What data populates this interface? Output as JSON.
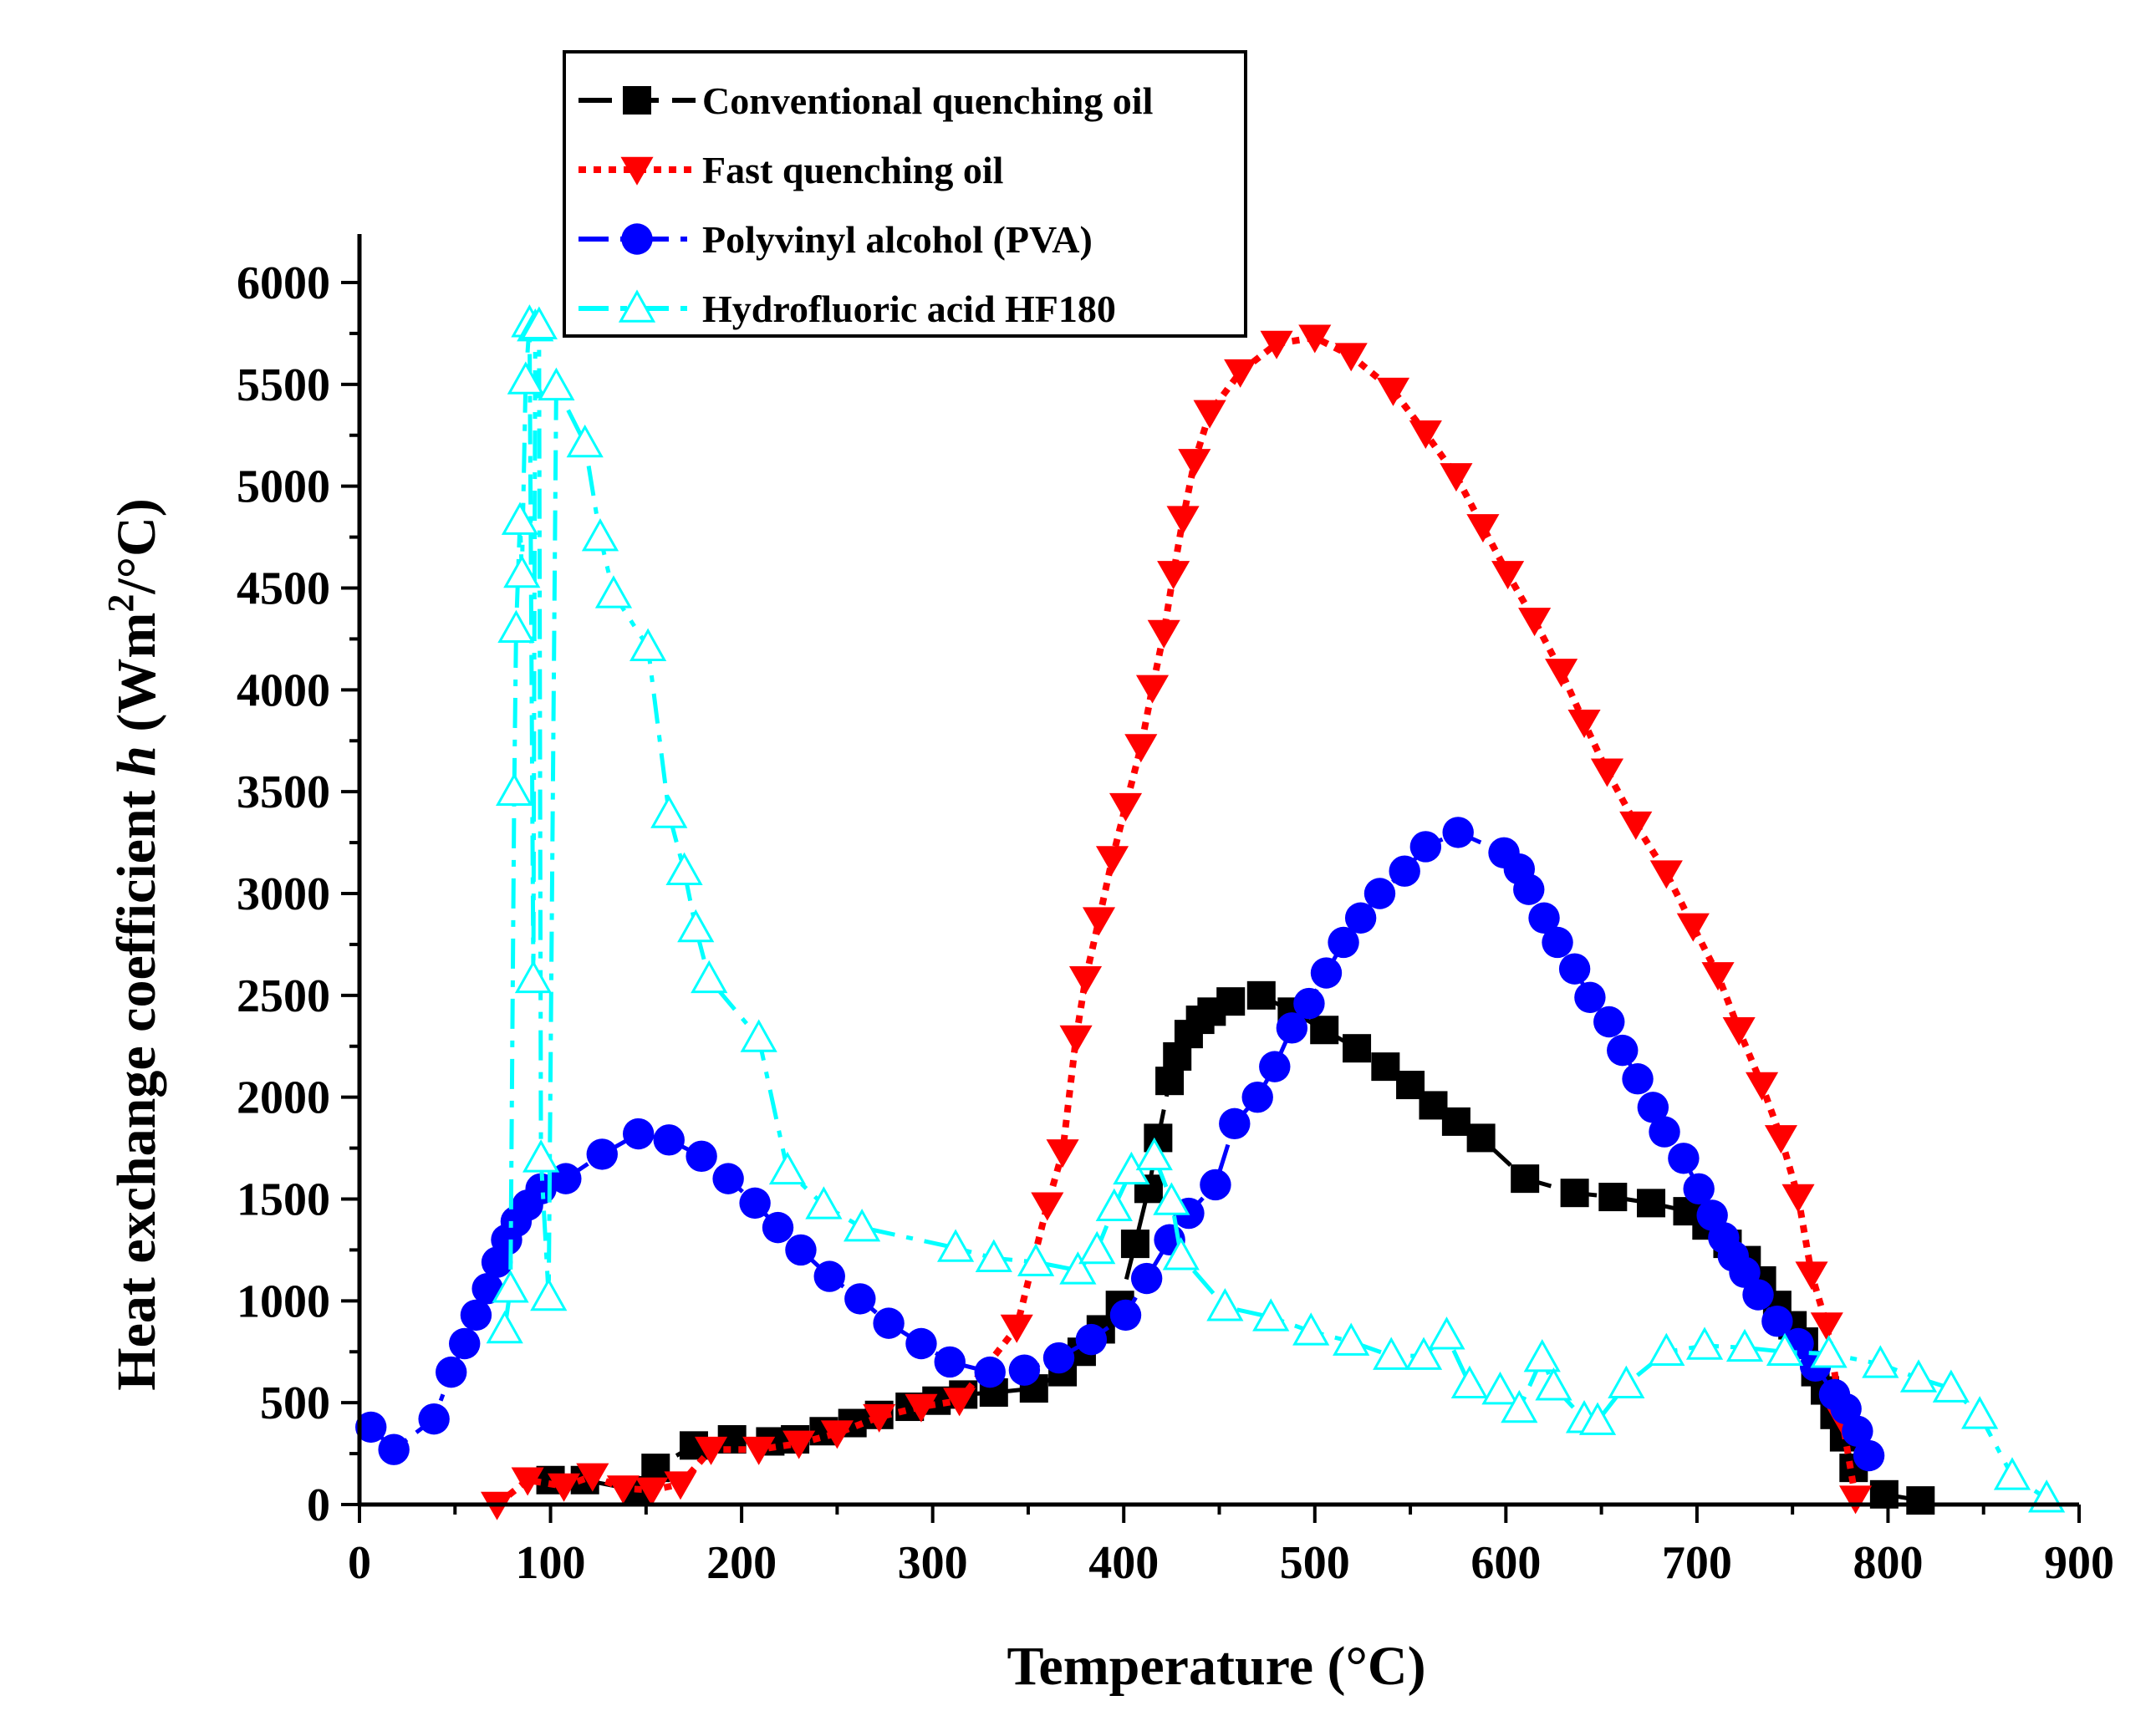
{
  "chart_data": {
    "type": "line",
    "title": "",
    "xlabel": "Temperature (°C)",
    "ylabel": {
      "prefix": "Heat exchange coefficient ",
      "symbol": "h",
      "unit_open": " (Wm",
      "unit_sup": "2",
      "unit_close": "/°C)"
    },
    "xlim": [
      0,
      900
    ],
    "ylim": [
      0,
      6000
    ],
    "xticks": [
      "0",
      "100",
      "200",
      "300",
      "400",
      "500",
      "600",
      "700",
      "800",
      "900"
    ],
    "yticks": [
      "0",
      "500",
      "1000",
      "1500",
      "2000",
      "2500",
      "3000",
      "3500",
      "4000",
      "4500",
      "5000",
      "5500",
      "6000"
    ],
    "grid": false,
    "legend_position": "top-center",
    "series": [
      {
        "name": "Conventional quenching oil",
        "color": "#000000",
        "marker": "square",
        "line": "dash",
        "x": [
          100,
          118,
          145,
          155,
          175,
          195,
          215,
          228,
          243,
          258,
          272,
          288,
          302,
          316,
          332,
          353,
          368,
          378,
          388,
          398,
          406,
          413,
          418,
          424,
          428,
          434,
          440,
          446,
          456,
          472,
          488,
          505,
          522,
          537,
          550,
          562,
          574,
          587,
          610,
          636,
          656,
          676,
          695,
          705,
          716,
          726,
          734,
          742,
          750,
          756,
          762,
          767,
          772,
          777,
          782,
          798,
          817
        ],
        "y": [
          120,
          120,
          70,
          180,
          290,
          320,
          310,
          320,
          360,
          400,
          440,
          480,
          510,
          540,
          550,
          570,
          650,
          750,
          860,
          980,
          1280,
          1550,
          1800,
          2080,
          2200,
          2310,
          2380,
          2420,
          2470,
          2500,
          2420,
          2330,
          2240,
          2150,
          2060,
          1960,
          1880,
          1800,
          1600,
          1530,
          1510,
          1480,
          1440,
          1370,
          1280,
          1200,
          1100,
          980,
          880,
          800,
          650,
          560,
          440,
          330,
          180,
          50,
          20
        ]
      },
      {
        "name": "Fast quenching oil",
        "color": "#ff0000",
        "marker": "triangle-down",
        "line": "dot",
        "x": [
          72,
          88,
          107,
          122,
          138,
          153,
          168,
          184,
          209,
          230,
          250,
          272,
          294,
          314,
          344,
          360,
          368,
          375,
          380,
          387,
          394,
          401,
          409,
          415,
          421,
          426,
          431,
          437,
          445,
          461,
          480,
          500,
          519,
          541,
          558,
          574,
          588,
          601,
          615,
          629,
          641,
          653,
          668,
          684,
          698,
          711,
          722,
          734,
          744,
          753,
          760,
          768,
          776,
          783
        ],
        "y": [
          0,
          120,
          90,
          140,
          80,
          70,
          100,
          270,
          270,
          300,
          350,
          430,
          480,
          510,
          870,
          1470,
          1730,
          2290,
          2580,
          2870,
          3170,
          3430,
          3720,
          4010,
          4280,
          4570,
          4840,
          5120,
          5360,
          5560,
          5700,
          5730,
          5640,
          5470,
          5260,
          5050,
          4800,
          4570,
          4340,
          4090,
          3840,
          3600,
          3340,
          3100,
          2840,
          2600,
          2330,
          2060,
          1800,
          1510,
          1130,
          880,
          420,
          30
        ]
      },
      {
        "name": "Polyvinyl alcohol (PVA)",
        "color": "#0000ff",
        "marker": "circle",
        "line": "dashdot",
        "x": [
          6,
          18,
          39,
          48,
          55,
          61,
          67,
          72,
          77,
          82,
          88,
          95,
          108,
          127,
          146,
          162,
          179,
          193,
          207,
          219,
          231,
          246,
          262,
          277,
          294,
          309,
          330,
          348,
          366,
          383,
          401,
          412,
          424,
          434,
          448,
          458,
          470,
          479,
          488,
          497,
          506,
          515,
          524,
          534,
          547,
          558,
          575,
          599,
          607,
          612,
          620,
          627,
          636,
          644,
          654,
          661,
          669,
          677,
          683,
          693,
          701,
          708,
          714,
          719,
          725,
          732,
          742,
          753,
          762,
          772,
          778,
          784,
          790
        ],
        "y": [
          380,
          270,
          420,
          650,
          790,
          930,
          1060,
          1190,
          1300,
          1390,
          1470,
          1550,
          1600,
          1720,
          1820,
          1790,
          1710,
          1600,
          1480,
          1360,
          1250,
          1120,
          1010,
          890,
          790,
          700,
          650,
          660,
          720,
          810,
          930,
          1110,
          1300,
          1430,
          1570,
          1870,
          2000,
          2150,
          2340,
          2460,
          2610,
          2760,
          2880,
          3000,
          3110,
          3230,
          3300,
          3200,
          3120,
          3020,
          2880,
          2760,
          2630,
          2490,
          2370,
          2230,
          2090,
          1950,
          1830,
          1700,
          1550,
          1420,
          1310,
          1220,
          1140,
          1030,
          900,
          790,
          680,
          540,
          470,
          360,
          240
        ]
      },
      {
        "name": "Hydrofluoric acid HF180",
        "color": "#00ffff",
        "marker": "triangle-up",
        "line": "dashdot",
        "x": [
          76,
          79,
          81,
          82,
          84,
          85,
          87,
          89,
          91,
          92,
          94,
          95,
          99,
          103,
          118,
          126,
          133,
          151,
          162,
          170,
          176,
          183,
          209,
          224,
          243,
          263,
          312,
          332,
          354,
          376,
          386,
          395,
          404,
          416,
          425,
          430,
          453,
          477,
          498,
          519,
          540,
          557,
          569,
          581,
          597,
          607,
          619,
          625,
          641,
          648,
          663,
          684,
          704,
          725,
          746,
          769,
          796,
          816,
          833,
          848,
          865,
          883
        ],
        "y": [
          860,
          1060,
          3500,
          4300,
          4830,
          4570,
          5520,
          5800,
          2580,
          5780,
          5790,
          1700,
          1020,
          5490,
          5210,
          4750,
          4470,
          4210,
          3390,
          3110,
          2830,
          2580,
          2290,
          1640,
          1470,
          1360,
          1260,
          1210,
          1190,
          1150,
          1250,
          1460,
          1640,
          1710,
          1490,
          1220,
          970,
          920,
          850,
          800,
          730,
          730,
          830,
          590,
          560,
          470,
          720,
          580,
          420,
          410,
          590,
          750,
          780,
          770,
          750,
          740,
          690,
          620,
          570,
          440,
          140,
          30
        ]
      }
    ]
  }
}
